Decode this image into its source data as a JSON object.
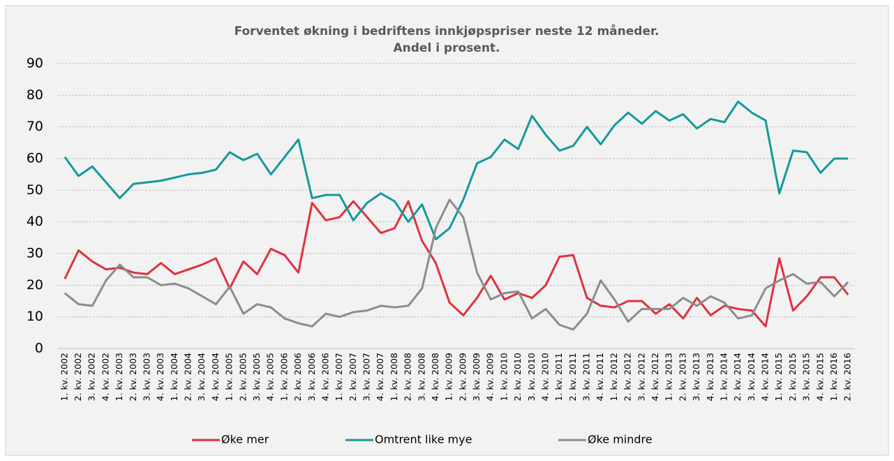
{
  "chart_data": {
    "type": "line",
    "title": "Forventet økning i bedriftens innkjøpspriser neste 12 måneder.",
    "subtitle": "Andel i prosent.",
    "categories": [
      "1. kv. 2002",
      "2. kv. 2002",
      "3. kv. 2002",
      "4. kv. 2002",
      "1. kv. 2003",
      "2. kv. 2003",
      "3. kv. 2003",
      "4. kv. 2003",
      "1. kv. 2004",
      "2. kv. 2004",
      "3. kv. 2004",
      "4. kv. 2004",
      "1. kv. 2005",
      "2. kv. 2005",
      "3. kv. 2005",
      "4. kv. 2005",
      "1. kv. 2006",
      "2. kv. 2006",
      "3. kv. 2006",
      "4. kv. 2006",
      "1. kv. 2007",
      "2. kv. 2007",
      "3. kv. 2007",
      "4. kv. 2007",
      "1. kv. 2008",
      "2. kv. 2008",
      "3. kv. 2008",
      "4. kv. 2008",
      "1. kv. 2009",
      "2. kv. 2009",
      "3. kv. 2009",
      "4. kv. 2009",
      "1. kv. 2010",
      "2. kv. 2010",
      "3. kv. 2010",
      "4. kv. 2010",
      "1. kv. 2011",
      "2. kv. 2011",
      "3. kv. 2011",
      "4. kv. 2011",
      "1. kv. 2012",
      "2. kv. 2012",
      "3. kv. 2012",
      "4. kv. 2012",
      "1. kv. 2013",
      "2. kv. 2013",
      "3. kv. 2013",
      "4. kv. 2013",
      "1. kv. 2014",
      "2. kv. 2014",
      "3. kv. 2014",
      "4. kv. 2014",
      "1. kv. 2015",
      "2. kv. 2015",
      "3. kv. 2015",
      "4. kv. 2015",
      "1. kv. 2016",
      "2. kv. 2016"
    ],
    "series": [
      {
        "name": "Øke mer",
        "color": "#e0303f",
        "values": [
          22,
          31,
          27.5,
          25,
          25.5,
          24,
          23.5,
          27,
          23.5,
          25,
          26.5,
          28.5,
          19,
          27.5,
          23.5,
          31.5,
          29.5,
          24,
          46,
          40.5,
          41.5,
          46.5,
          41.5,
          36.5,
          38,
          46.5,
          34,
          27,
          14.5,
          10.5,
          16,
          23,
          15.5,
          17.5,
          16,
          20,
          29,
          29.5,
          16,
          13.5,
          13,
          15,
          15,
          11,
          14,
          9.5,
          16,
          10.5,
          13.5,
          12.5,
          12,
          7,
          28.5,
          12,
          16.5,
          22.5,
          22.5,
          17
        ]
      },
      {
        "name": "Omtrent like mye",
        "color": "#13999a",
        "values": [
          60.5,
          54.5,
          57.5,
          52.5,
          47.5,
          52,
          52.5,
          53,
          54,
          55,
          55.5,
          56.5,
          62,
          59.5,
          61.5,
          55,
          60.5,
          66,
          47.5,
          48.5,
          48.5,
          40.5,
          46,
          49,
          46.5,
          40,
          45.5,
          34.5,
          38,
          47,
          58.5,
          60.5,
          66,
          63,
          73.5,
          67.5,
          62.5,
          64,
          70,
          64.5,
          70.5,
          74.5,
          71,
          75,
          72,
          74,
          69.5,
          72.5,
          71.5,
          78,
          74.5,
          72,
          49,
          62.5,
          62,
          55.5,
          60,
          60
        ]
      },
      {
        "name": "Øke mindre",
        "color": "#8c8c8c",
        "values": [
          17.5,
          14,
          13.5,
          21.5,
          26.5,
          22.5,
          22.5,
          20,
          20.5,
          19,
          16.5,
          14,
          19.5,
          11,
          14,
          13,
          9.5,
          8,
          7,
          11,
          10,
          11.5,
          12,
          13.5,
          13,
          13.5,
          19,
          38,
          47,
          41.5,
          24,
          15.5,
          17.5,
          18,
          9.5,
          12.5,
          7.5,
          6,
          11,
          21.5,
          15.5,
          8.5,
          12.5,
          12.5,
          12.5,
          16,
          13.5,
          16.5,
          14.5,
          9.5,
          10.5,
          19,
          21.5,
          23.5,
          20.5,
          21,
          16.5,
          21
        ]
      }
    ],
    "ylim": [
      0,
      90
    ],
    "yticks": [
      0,
      10,
      20,
      30,
      40,
      50,
      60,
      70,
      80,
      90
    ],
    "grid": true,
    "legend": "bottom"
  }
}
